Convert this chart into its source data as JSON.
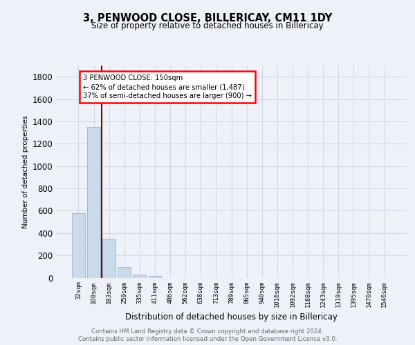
{
  "title_line1": "3, PENWOOD CLOSE, BILLERICAY, CM11 1DY",
  "title_line2": "Size of property relative to detached houses in Billericay",
  "xlabel": "Distribution of detached houses by size in Billericay",
  "ylabel": "Number of detached properties",
  "categories": [
    "32sqm",
    "108sqm",
    "183sqm",
    "259sqm",
    "335sqm",
    "411sqm",
    "486sqm",
    "562sqm",
    "638sqm",
    "713sqm",
    "789sqm",
    "865sqm",
    "940sqm",
    "1016sqm",
    "1092sqm",
    "1168sqm",
    "1243sqm",
    "1319sqm",
    "1395sqm",
    "1470sqm",
    "1546sqm"
  ],
  "values": [
    580,
    1350,
    350,
    95,
    25,
    15,
    0,
    0,
    0,
    0,
    0,
    0,
    0,
    0,
    0,
    0,
    0,
    0,
    0,
    0,
    0
  ],
  "bar_color": "#c9daea",
  "bar_edge_color": "#a0bcd4",
  "grid_color": "#d0d8e8",
  "annotation_line1": "3 PENWOOD CLOSE: 150sqm",
  "annotation_line2": "← 62% of detached houses are smaller (1,487)",
  "annotation_line3": "37% of semi-detached houses are larger (900) →",
  "annotation_box_color": "white",
  "annotation_box_edge": "red",
  "vline_x": 1.5,
  "vline_color": "#8b0000",
  "ylim": [
    0,
    1900
  ],
  "yticks": [
    0,
    200,
    400,
    600,
    800,
    1000,
    1200,
    1400,
    1600,
    1800
  ],
  "footer_line1": "Contains HM Land Registry data © Crown copyright and database right 2024.",
  "footer_line2": "Contains public sector information licensed under the Open Government Licence v3.0.",
  "bg_color": "#eef2f8",
  "plot_bg_color": "#eef2f8"
}
